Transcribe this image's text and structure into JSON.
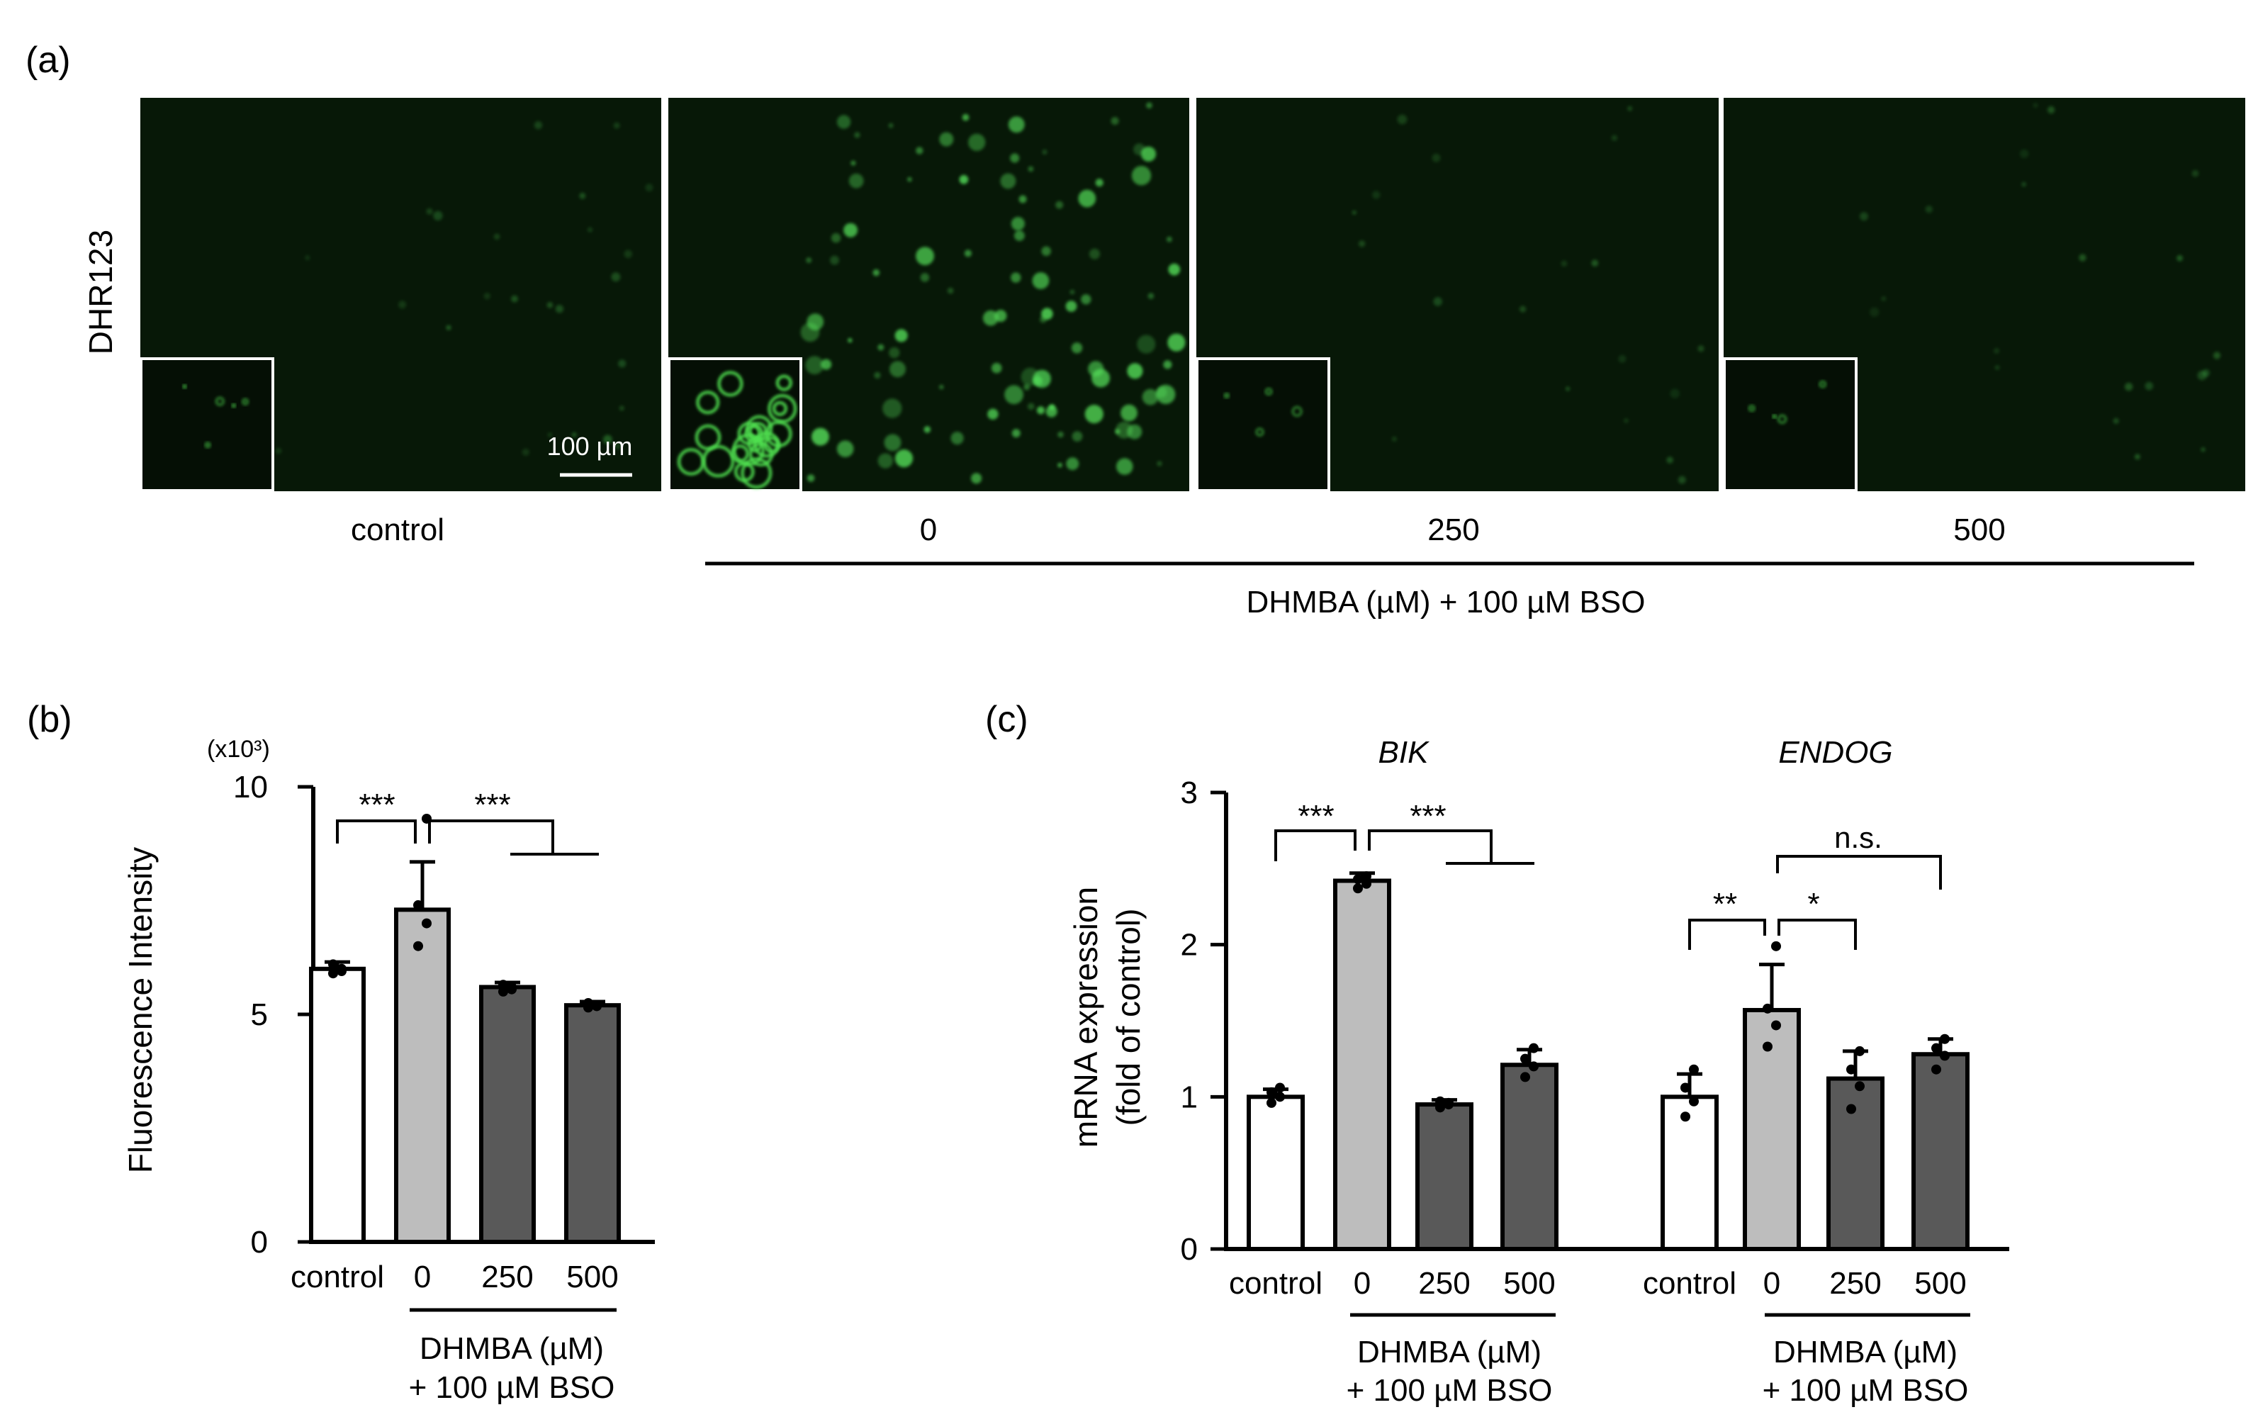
{
  "panel_a": {
    "label": "(a)",
    "row_label": "DHR123",
    "scale_bar_label": "100 µm",
    "images": [
      {
        "name": "control",
        "label": "control",
        "signal": 0.12
      },
      {
        "name": "bso-0",
        "label": "0",
        "signal": 1.0
      },
      {
        "name": "bso-250",
        "label": "250",
        "signal": 0.05
      },
      {
        "name": "bso-500",
        "label": "500",
        "signal": 0.08
      }
    ],
    "group_label": "DHMBA (µM) + 100 µM BSO"
  },
  "chart_data": [
    {
      "panel_label": "(b)",
      "type": "bar",
      "ylabel": "Fluorescence Intensity",
      "y_multiplier": "(x10³)",
      "ylim": [
        0,
        10
      ],
      "yticks": [
        "0",
        "5",
        "10"
      ],
      "categories": [
        "control",
        "0",
        "250",
        "500"
      ],
      "values": [
        6.0,
        7.3,
        5.6,
        5.2
      ],
      "errors": [
        0.15,
        1.05,
        0.1,
        0.08
      ],
      "points": [
        [
          5.9,
          6.0,
          6.1,
          5.95
        ],
        [
          6.5,
          7.0,
          7.4,
          9.3
        ],
        [
          5.5,
          5.6,
          5.65,
          5.55
        ],
        [
          5.15,
          5.2,
          5.25,
          5.18
        ]
      ],
      "bar_colors": [
        "#ffffff",
        "#bdbdbd",
        "#595959",
        "#595959"
      ],
      "group_label_line1": "DHMBA (µM)",
      "group_label_line2": "+ 100 µM BSO",
      "significance": [
        {
          "label": "***",
          "from": 0,
          "to": [
            1
          ]
        },
        {
          "label": "***",
          "from": 1,
          "to": [
            2,
            3
          ]
        }
      ]
    },
    {
      "panel_label": "(c)",
      "type": "bar",
      "ylabel_line1": "mRNA expression",
      "ylabel_line2": "(fold of control)",
      "ylim": [
        0,
        3
      ],
      "yticks": [
        "0",
        "1",
        "2",
        "3"
      ],
      "groups": [
        {
          "gene": "BIK",
          "categories": [
            "control",
            "0",
            "250",
            "500"
          ],
          "values": [
            1.0,
            2.42,
            0.95,
            1.21
          ],
          "errors": [
            0.05,
            0.05,
            0.03,
            0.1
          ],
          "points": [
            [
              0.96,
              1.0,
              1.03,
              1.06
            ],
            [
              2.37,
              2.4,
              2.43,
              2.45
            ],
            [
              0.93,
              0.95,
              0.97,
              0.96
            ],
            [
              1.13,
              1.2,
              1.25,
              1.32
            ]
          ],
          "group_label_line1": "DHMBA (µM)",
          "group_label_line2": "+ 100 µM BSO",
          "significance": [
            {
              "label": "***",
              "from": 0,
              "to": [
                1
              ]
            },
            {
              "label": "***",
              "from": 1,
              "to": [
                2,
                3
              ]
            }
          ]
        },
        {
          "gene": "ENDOG",
          "categories": [
            "control",
            "0",
            "250",
            "500"
          ],
          "values": [
            1.0,
            1.57,
            1.12,
            1.28
          ],
          "errors": [
            0.15,
            0.3,
            0.18,
            0.1
          ],
          "points": [
            [
              0.87,
              0.97,
              1.06,
              1.18
            ],
            [
              1.33,
              1.47,
              1.58,
              1.99
            ],
            [
              0.92,
              1.07,
              1.18,
              1.3
            ],
            [
              1.18,
              1.27,
              1.32,
              1.38
            ]
          ],
          "group_label_line1": "DHMBA (µM)",
          "group_label_line2": "+ 100 µM BSO",
          "significance": [
            {
              "label": "**",
              "from": 0,
              "to": [
                1
              ]
            },
            {
              "label": "*",
              "from": 1,
              "to": [
                2
              ]
            },
            {
              "label": "n.s.",
              "from": 1,
              "to": [
                3
              ]
            }
          ]
        }
      ],
      "bar_colors": [
        "#ffffff",
        "#bdbdbd",
        "#595959",
        "#595959"
      ]
    }
  ]
}
